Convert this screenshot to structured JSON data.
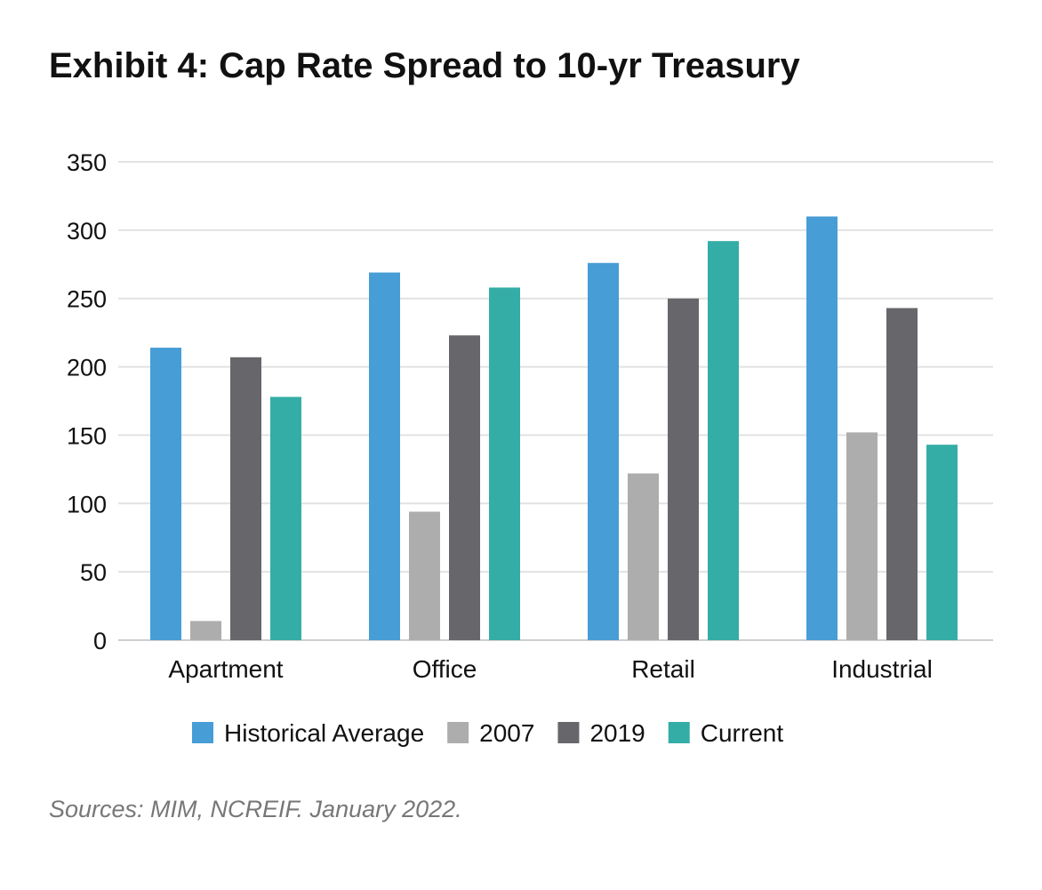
{
  "title": "Exhibit 4: Cap Rate Spread to 10-yr Treasury",
  "source": "Sources: MIM, NCREIF. January 2022.",
  "chart_data": {
    "type": "bar",
    "title": "Exhibit 4: Cap Rate Spread to 10-yr Treasury",
    "xlabel": "",
    "ylabel": "",
    "ylim": [
      0,
      350
    ],
    "yticks": [
      0,
      50,
      100,
      150,
      200,
      250,
      300,
      350
    ],
    "grid": true,
    "legend_position": "bottom",
    "categories": [
      "Apartment",
      "Office",
      "Retail",
      "Industrial"
    ],
    "series": [
      {
        "name": "Historical Average",
        "color": "#479dd6",
        "values": [
          214,
          269,
          276,
          310
        ]
      },
      {
        "name": "2007",
        "color": "#adadad",
        "values": [
          14,
          94,
          122,
          152
        ]
      },
      {
        "name": "2019",
        "color": "#67676b",
        "values": [
          207,
          223,
          250,
          243
        ]
      },
      {
        "name": "Current",
        "color": "#34ada6",
        "values": [
          178,
          258,
          292,
          143
        ]
      }
    ]
  }
}
